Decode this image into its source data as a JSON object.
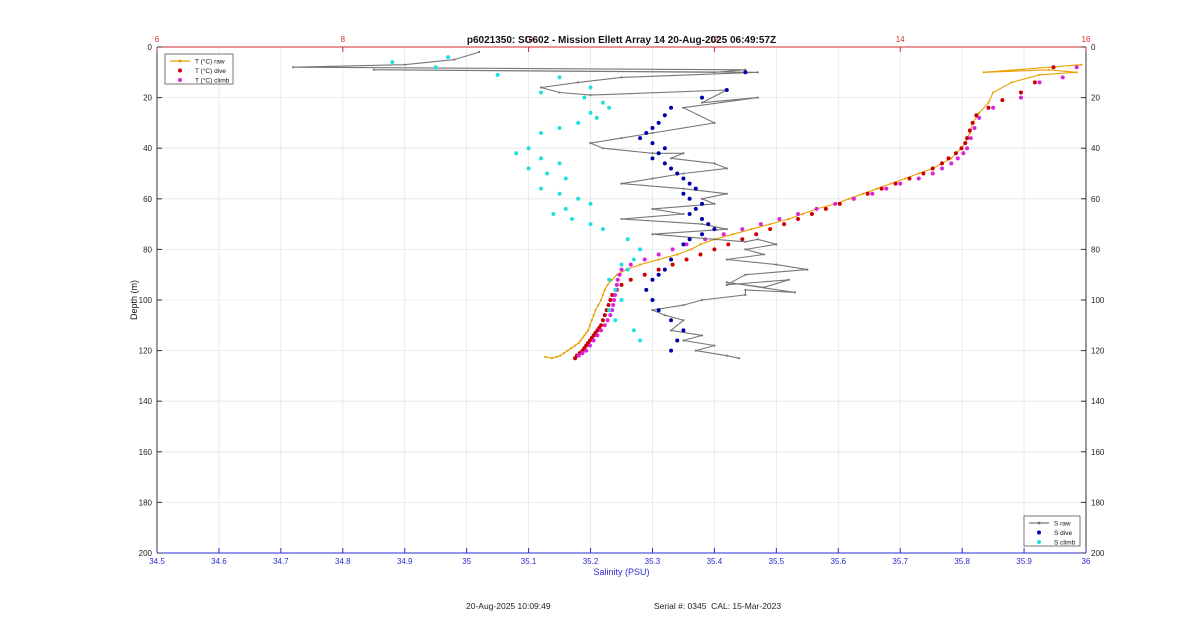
{
  "chart_data": {
    "type": "scatter",
    "title": "p6021350: SG602 - Mission Ellett Array 14 20-Aug-2025 06:49:57Z",
    "ylabel": "Depth (m)",
    "xlabel_bottom": "Salinity (PSU)",
    "xlim_bottom": [
      34.5,
      36
    ],
    "xticks_bottom": [
      "34.5",
      "34.6",
      "34.7",
      "34.8",
      "34.9",
      "35",
      "35.1",
      "35.2",
      "35.3",
      "35.4",
      "35.5",
      "35.6",
      "35.7",
      "35.8",
      "35.9",
      "36"
    ],
    "xlim_top": [
      6,
      16
    ],
    "xticks_top": [
      "6",
      "8",
      "10",
      "12",
      "14",
      "16"
    ],
    "ylim": [
      0,
      200
    ],
    "yticks": [
      "0",
      "20",
      "40",
      "60",
      "80",
      "100",
      "120",
      "140",
      "160",
      "180",
      "200"
    ],
    "y_reversed": true,
    "grid": true,
    "legend_top_left": {
      "placement": "top-left",
      "entries": [
        "T (°C) raw",
        "T (°C) dive",
        "T (°C) climb"
      ]
    },
    "legend_bottom_right": {
      "placement": "bottom-right",
      "entries": [
        "S raw",
        "S dive",
        "S climb"
      ]
    },
    "series": [
      {
        "name": "T (°C) raw",
        "axis": "top",
        "color": "#e8a000",
        "style": "line",
        "x": [
          15.95,
          14.9,
          15.6,
          15.9,
          15.5,
          15.2,
          15.0,
          14.95,
          14.85,
          14.78,
          14.75,
          14.72,
          14.7,
          14.66,
          14.6,
          14.55,
          14.45,
          14.35,
          14.2,
          14.05,
          13.9,
          13.75,
          13.6,
          13.45,
          13.3,
          13.1,
          12.95,
          12.8,
          12.6,
          12.4,
          12.2,
          12.0,
          11.85,
          11.75,
          11.6,
          11.4,
          11.2,
          11.05,
          10.95,
          10.9,
          10.85,
          10.82,
          10.8,
          10.78,
          10.75,
          10.72,
          10.7,
          10.68,
          10.66,
          10.64,
          10.62,
          10.6,
          10.58,
          10.56,
          10.54,
          10.5,
          10.46,
          10.42,
          10.38,
          10.34,
          10.3,
          10.25,
          10.18
        ],
        "y": [
          7,
          10,
          9,
          10,
          11,
          14,
          18,
          22,
          26,
          30,
          34,
          36,
          38,
          40,
          42,
          44,
          46,
          48,
          50,
          52,
          54,
          56,
          58,
          60,
          62,
          64,
          66,
          68,
          70,
          72,
          74,
          76,
          78,
          80,
          82,
          84,
          86,
          88,
          90,
          92,
          94,
          96,
          98,
          100,
          102,
          104,
          106,
          108,
          110,
          112,
          113,
          114,
          115,
          116,
          117,
          118,
          119,
          120,
          121,
          122,
          122.5,
          123,
          122.5
        ]
      },
      {
        "name": "T (°C) dive",
        "axis": "top",
        "color": "#cc0000",
        "style": "dots",
        "x": [
          15.65,
          15.45,
          15.3,
          15.1,
          14.95,
          14.82,
          14.78,
          14.75,
          14.72,
          14.7,
          14.66,
          14.6,
          14.52,
          14.45,
          14.35,
          14.25,
          14.1,
          13.95,
          13.8,
          13.65,
          13.5,
          13.35,
          13.2,
          13.05,
          12.9,
          12.75,
          12.6,
          12.45,
          12.3,
          12.15,
          12.0,
          11.85,
          11.7,
          11.55,
          11.4,
          11.25,
          11.1,
          11.0,
          10.95,
          10.9,
          10.88,
          10.86,
          10.84,
          10.82,
          10.8,
          10.78,
          10.76,
          10.74,
          10.72,
          10.7,
          10.68,
          10.66,
          10.64,
          10.62,
          10.6,
          10.58,
          10.55,
          10.52,
          10.5
        ],
        "y": [
          8,
          14,
          18,
          21,
          24,
          27,
          30,
          33,
          36,
          38,
          40,
          42,
          44,
          46,
          48,
          50,
          52,
          54,
          56,
          58,
          60,
          62,
          64,
          66,
          68,
          70,
          72,
          74,
          76,
          78,
          80,
          82,
          84,
          86,
          88,
          90,
          92,
          94,
          96,
          98,
          100,
          102,
          104,
          106,
          108,
          110,
          111,
          112,
          113,
          114,
          115,
          116,
          117,
          118,
          119,
          120,
          121,
          122,
          123
        ]
      },
      {
        "name": "T (°C) climb",
        "axis": "top",
        "color": "#dd22dd",
        "style": "dots",
        "x": [
          15.9,
          15.75,
          15.5,
          15.3,
          15.0,
          14.85,
          14.8,
          14.76,
          14.72,
          14.68,
          14.62,
          14.55,
          14.45,
          14.35,
          14.2,
          14.0,
          13.85,
          13.7,
          13.5,
          13.3,
          13.1,
          12.9,
          12.7,
          12.5,
          12.3,
          12.1,
          11.9,
          11.7,
          11.55,
          11.4,
          11.25,
          11.1,
          11.0,
          10.98,
          10.96,
          10.95,
          10.94,
          10.93,
          10.92,
          10.91,
          10.9,
          10.88,
          10.85,
          10.82,
          10.78,
          10.74,
          10.7,
          10.66,
          10.62,
          10.58,
          10.54
        ],
        "y": [
          8,
          12,
          14,
          20,
          24,
          28,
          32,
          36,
          40,
          42,
          44,
          46,
          48,
          50,
          52,
          54,
          56,
          58,
          60,
          62,
          64,
          66,
          68,
          70,
          72,
          74,
          76,
          78,
          80,
          82,
          84,
          86,
          88,
          90,
          92,
          94,
          96,
          98,
          100,
          102,
          104,
          106,
          108,
          110,
          112,
          114,
          116,
          118,
          120,
          121,
          122
        ]
      },
      {
        "name": "S raw",
        "axis": "bottom",
        "color": "#777777",
        "style": "line",
        "x": [
          35.02,
          34.98,
          34.9,
          34.72,
          35.45,
          35.4,
          34.85,
          35.47,
          35.25,
          35.18,
          35.12,
          35.15,
          35.2,
          35.42,
          35.38,
          35.47,
          35.35,
          35.4,
          35.3,
          35.25,
          35.2,
          35.22,
          35.3,
          35.35,
          35.33,
          35.4,
          35.42,
          35.35,
          35.3,
          35.25,
          35.35,
          35.42,
          35.38,
          35.4,
          35.3,
          35.35,
          35.25,
          35.38,
          35.42,
          35.3,
          35.4,
          35.45,
          35.47,
          35.5,
          35.45,
          35.48,
          35.42,
          35.5,
          35.55,
          35.45,
          35.42,
          35.52,
          35.48,
          35.42,
          35.53,
          35.45,
          35.45,
          35.38,
          35.35,
          35.3,
          35.32,
          35.35,
          35.33,
          35.38,
          35.35,
          35.4,
          35.37,
          35.42,
          35.44
        ],
        "y": [
          2,
          5,
          7,
          8,
          9,
          10,
          9,
          10,
          12,
          14,
          16,
          18,
          19,
          17,
          22,
          20,
          24,
          30,
          34,
          36,
          38,
          40,
          42,
          42,
          44,
          46,
          48,
          50,
          52,
          54,
          56,
          58,
          60,
          62,
          64,
          66,
          68,
          70,
          72,
          74,
          76,
          77,
          76,
          78,
          80,
          82,
          84,
          86,
          88,
          90,
          94,
          92,
          95,
          93,
          97,
          96,
          98,
          100,
          102,
          104,
          106,
          108,
          112,
          114,
          116,
          118,
          120,
          122,
          123
        ]
      },
      {
        "name": "S dive",
        "axis": "bottom",
        "color": "#0000aa",
        "style": "dots",
        "x": [
          35.45,
          35.42,
          35.38,
          35.33,
          35.32,
          35.31,
          35.3,
          35.29,
          35.28,
          35.3,
          35.32,
          35.31,
          35.3,
          35.32,
          35.33,
          35.34,
          35.35,
          35.36,
          35.37,
          35.35,
          35.36,
          35.38,
          35.37,
          35.36,
          35.38,
          35.39,
          35.4,
          35.38,
          35.36,
          35.35,
          35.33,
          35.32,
          35.31,
          35.3,
          35.29,
          35.3,
          35.31,
          35.33,
          35.35,
          35.34,
          35.33
        ],
        "y": [
          10,
          17,
          20,
          24,
          27,
          30,
          32,
          34,
          36,
          38,
          40,
          42,
          44,
          46,
          48,
          50,
          52,
          54,
          56,
          58,
          60,
          62,
          64,
          66,
          68,
          70,
          72,
          74,
          76,
          78,
          84,
          88,
          90,
          92,
          96,
          100,
          104,
          108,
          112,
          116,
          120
        ]
      },
      {
        "name": "S climb",
        "axis": "bottom",
        "color": "#22e0e0",
        "style": "dots",
        "x": [
          34.97,
          34.95,
          34.88,
          35.05,
          35.15,
          35.12,
          35.2,
          35.19,
          35.22,
          35.23,
          35.2,
          35.21,
          35.18,
          35.15,
          35.12,
          35.1,
          35.08,
          35.12,
          35.15,
          35.1,
          35.13,
          35.16,
          35.12,
          35.15,
          35.18,
          35.2,
          35.16,
          35.14,
          35.17,
          35.2,
          35.22,
          35.26,
          35.28,
          35.27,
          35.25,
          35.26,
          35.23,
          35.24,
          35.25,
          35.23,
          35.24,
          35.27,
          35.28
        ],
        "y": [
          4,
          8,
          6,
          11,
          12,
          18,
          16,
          20,
          22,
          24,
          26,
          28,
          30,
          32,
          34,
          40,
          42,
          44,
          46,
          48,
          50,
          52,
          56,
          58,
          60,
          62,
          64,
          66,
          68,
          70,
          72,
          76,
          80,
          84,
          86,
          88,
          92,
          96,
          100,
          104,
          108,
          112,
          116
        ]
      }
    ]
  },
  "footer": {
    "timestamp": "20-Aug-2025 10:09:49",
    "serial": "Serial #: 0345  CAL: 15-Mar-2023"
  }
}
